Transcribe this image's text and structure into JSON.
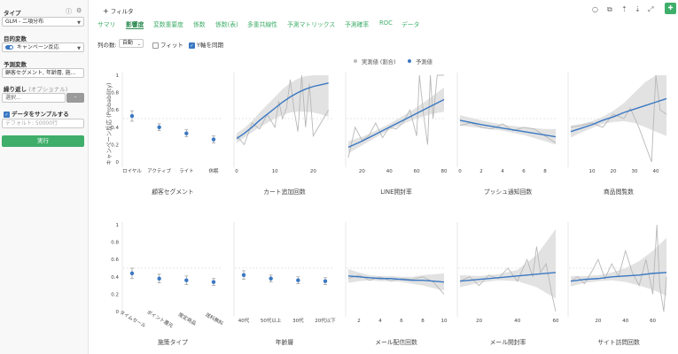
{
  "sidebar": {
    "type_label": "タイプ",
    "type_value": "GLM - 二項分布",
    "target_label": "目的変数",
    "target_value": "キャンペーン反応",
    "predictor_label": "予測変数",
    "predictor_value": "顧客セグメント, 年齢層, 施...",
    "repeat_label": "繰り返し",
    "repeat_optional": "(オプショナル)",
    "repeat_placeholder": "選択...",
    "sample_label": "データをサンプルする",
    "sample_placeholder": "デフォルト: 50000行",
    "run_label": "実行"
  },
  "header": {
    "filter_label": "フィルタ",
    "tabs": [
      "サマリ",
      "影響度",
      "変数重要度",
      "係数",
      "係数(表)",
      "多重共線性",
      "予測マトリックス",
      "予測確率",
      "ROC",
      "データ"
    ],
    "columns_label": "列の数:",
    "columns_value": "自動",
    "fit_label": "フィット",
    "sync_label": "Y軸を同期"
  },
  "legend": {
    "actual": "実測値 (割合)",
    "predicted": "予測値"
  },
  "colors": {
    "accent": "#3fae6a",
    "line": "#3a78c2",
    "band": "#e2e2e2",
    "actual": "#b8b8b8"
  },
  "chart_data": [
    {
      "type": "scatter",
      "title": "顧客セグメント",
      "ylabel": "キャンペーン反応 (Probability)",
      "ylim": [
        0,
        1
      ],
      "yticks": [
        "0",
        "0.2",
        "0.4",
        "0.6",
        "0.8",
        "1"
      ],
      "categories": [
        "ロイヤル",
        "アクティブ",
        "ライト",
        "休眠"
      ],
      "values": [
        0.53,
        0.4,
        0.33,
        0.26
      ],
      "lower": [
        0.47,
        0.36,
        0.29,
        0.22
      ],
      "upper": [
        0.59,
        0.44,
        0.37,
        0.3
      ]
    },
    {
      "type": "line",
      "title": "カート追加回数",
      "xlim": [
        0,
        25
      ],
      "xticks": [
        0,
        10,
        20
      ],
      "ylim": [
        0,
        1
      ],
      "x": [
        0,
        2,
        4,
        6,
        8,
        10,
        12,
        14,
        16,
        18,
        20,
        22,
        24
      ],
      "values": [
        0.27,
        0.33,
        0.4,
        0.48,
        0.55,
        0.62,
        0.69,
        0.75,
        0.8,
        0.84,
        0.87,
        0.89,
        0.91
      ],
      "lower": [
        0.22,
        0.28,
        0.34,
        0.4,
        0.45,
        0.5,
        0.54,
        0.57,
        0.58,
        0.58,
        0.57,
        0.55,
        0.52
      ],
      "upper": [
        0.33,
        0.39,
        0.47,
        0.57,
        0.66,
        0.75,
        0.84,
        0.91,
        0.96,
        0.99,
        1.0,
        1.0,
        1.0
      ],
      "actual_x": [
        0,
        2,
        4,
        6,
        8,
        10,
        11,
        12,
        13,
        14,
        15,
        16,
        17,
        18,
        19,
        20,
        22,
        24
      ],
      "actual": [
        0.3,
        0.2,
        0.45,
        0.38,
        0.55,
        0.4,
        0.7,
        0.5,
        0.62,
        0.95,
        0.6,
        0.35,
        1.0,
        0.4,
        0.9,
        0.3,
        0.45,
        0.6
      ]
    },
    {
      "type": "line",
      "title": "LINE開封率",
      "xlim": [
        10,
        80
      ],
      "xticks": [
        20,
        40,
        60,
        80
      ],
      "ylim": [
        0,
        1
      ],
      "x": [
        10,
        20,
        30,
        40,
        50,
        60,
        70,
        80
      ],
      "values": [
        0.17,
        0.24,
        0.32,
        0.4,
        0.48,
        0.56,
        0.64,
        0.72
      ],
      "lower": [
        0.1,
        0.19,
        0.28,
        0.37,
        0.44,
        0.5,
        0.55,
        0.58
      ],
      "upper": [
        0.24,
        0.29,
        0.36,
        0.44,
        0.53,
        0.63,
        0.74,
        0.86
      ],
      "actual_x": [
        10,
        15,
        20,
        25,
        30,
        35,
        40,
        45,
        50,
        55,
        60,
        62,
        65,
        68,
        70,
        72,
        75,
        80
      ],
      "actual": [
        0.05,
        0.4,
        0.25,
        0.3,
        0.45,
        0.28,
        0.4,
        0.38,
        0.45,
        0.6,
        0.3,
        1.0,
        0.55,
        0.2,
        1.0,
        0.5,
        1.0,
        1.0
      ]
    },
    {
      "type": "line",
      "title": "プッシュ通知回数",
      "xlim": [
        0,
        9
      ],
      "xticks": [
        0,
        2,
        4,
        6,
        8
      ],
      "ylim": [
        0,
        1
      ],
      "x": [
        0,
        2,
        4,
        6,
        8,
        9
      ],
      "values": [
        0.48,
        0.43,
        0.39,
        0.35,
        0.31,
        0.29
      ],
      "lower": [
        0.42,
        0.39,
        0.36,
        0.31,
        0.24,
        0.2
      ],
      "upper": [
        0.54,
        0.48,
        0.43,
        0.4,
        0.38,
        0.38
      ],
      "actual_x": [
        0,
        1,
        2,
        3,
        4,
        5,
        6,
        7,
        8,
        9
      ],
      "actual": [
        0.42,
        0.45,
        0.4,
        0.38,
        0.44,
        0.36,
        0.4,
        0.38,
        0.3,
        0.22
      ]
    },
    {
      "type": "line",
      "title": "商品閲覧数",
      "xlim": [
        0,
        45
      ],
      "xticks": [
        10,
        20,
        30,
        40
      ],
      "ylim": [
        0,
        1
      ],
      "x": [
        0,
        5,
        10,
        15,
        20,
        25,
        30,
        35,
        40,
        45
      ],
      "values": [
        0.35,
        0.39,
        0.43,
        0.48,
        0.52,
        0.57,
        0.61,
        0.65,
        0.69,
        0.73
      ],
      "lower": [
        0.28,
        0.34,
        0.39,
        0.44,
        0.46,
        0.47,
        0.45,
        0.4,
        0.35,
        0.3
      ],
      "upper": [
        0.42,
        0.44,
        0.47,
        0.52,
        0.59,
        0.68,
        0.8,
        0.92,
        1.0,
        1.0
      ],
      "actual_x": [
        0,
        5,
        10,
        15,
        20,
        25,
        28,
        32,
        35,
        38,
        40,
        42,
        45
      ],
      "actual": [
        0.4,
        0.42,
        0.45,
        0.4,
        0.55,
        0.5,
        0.62,
        0.4,
        0.2,
        0.0,
        1.0,
        0.6,
        0.55
      ]
    },
    {
      "type": "scatter",
      "title": "施策タイプ",
      "ylim": [
        0,
        1
      ],
      "yticks": [
        "0",
        "0.2",
        "0.4",
        "0.6",
        "0.8",
        "1"
      ],
      "categories": [
        "タイムセール",
        "ポイント還元",
        "限定商品",
        "送料無料"
      ],
      "values": [
        0.44,
        0.38,
        0.36,
        0.34
      ],
      "lower": [
        0.38,
        0.33,
        0.31,
        0.3
      ],
      "upper": [
        0.5,
        0.43,
        0.41,
        0.38
      ]
    },
    {
      "type": "scatter",
      "title": "年齢層",
      "ylim": [
        0,
        1
      ],
      "categories": [
        "40代",
        "50代以上",
        "30代",
        "20代以下"
      ],
      "values": [
        0.42,
        0.38,
        0.36,
        0.35
      ],
      "lower": [
        0.37,
        0.34,
        0.32,
        0.31
      ],
      "upper": [
        0.47,
        0.42,
        0.4,
        0.39
      ]
    },
    {
      "type": "line",
      "title": "メール配信回数",
      "xlim": [
        1,
        10
      ],
      "xticks": [
        2,
        4,
        6,
        8,
        10
      ],
      "ylim": [
        0,
        1
      ],
      "x": [
        1,
        2,
        3,
        4,
        5,
        6,
        7,
        8,
        9,
        10
      ],
      "values": [
        0.41,
        0.4,
        0.39,
        0.38,
        0.38,
        0.37,
        0.36,
        0.36,
        0.35,
        0.34
      ],
      "lower": [
        0.33,
        0.35,
        0.36,
        0.35,
        0.35,
        0.34,
        0.32,
        0.3,
        0.27,
        0.24
      ],
      "upper": [
        0.49,
        0.45,
        0.42,
        0.41,
        0.41,
        0.4,
        0.4,
        0.42,
        0.43,
        0.44
      ],
      "actual_x": [
        1,
        2,
        3,
        4,
        5,
        6,
        7,
        8,
        9,
        10
      ],
      "actual": [
        0.38,
        0.42,
        0.36,
        0.4,
        0.35,
        0.38,
        0.37,
        0.4,
        0.34,
        0.2
      ]
    },
    {
      "type": "line",
      "title": "メール開封率",
      "xlim": [
        10,
        60
      ],
      "xticks": [
        20,
        40,
        60
      ],
      "ylim": [
        0,
        1
      ],
      "x": [
        10,
        20,
        30,
        40,
        50,
        60
      ],
      "values": [
        0.35,
        0.37,
        0.39,
        0.41,
        0.43,
        0.45
      ],
      "lower": [
        0.28,
        0.33,
        0.36,
        0.35,
        0.28,
        0.15
      ],
      "upper": [
        0.42,
        0.41,
        0.43,
        0.48,
        0.65,
        0.95
      ],
      "actual_x": [
        10,
        15,
        20,
        25,
        30,
        35,
        40,
        45,
        48,
        50,
        52,
        55,
        58,
        60
      ],
      "actual": [
        0.35,
        0.4,
        0.3,
        0.42,
        0.38,
        0.5,
        0.35,
        0.6,
        0.4,
        0.75,
        0.45,
        0.55,
        0.2,
        0.0
      ]
    },
    {
      "type": "line",
      "title": "サイト訪問回数",
      "xlim": [
        0,
        70
      ],
      "xticks": [
        20,
        40,
        60
      ],
      "ylim": [
        0,
        1
      ],
      "x": [
        0,
        10,
        20,
        30,
        40,
        50,
        60,
        70
      ],
      "values": [
        0.35,
        0.37,
        0.38,
        0.4,
        0.41,
        0.42,
        0.44,
        0.45
      ],
      "lower": [
        0.29,
        0.33,
        0.35,
        0.36,
        0.34,
        0.3,
        0.25,
        0.18
      ],
      "upper": [
        0.41,
        0.41,
        0.42,
        0.45,
        0.5,
        0.58,
        0.7,
        0.85
      ],
      "actual_x": [
        0,
        5,
        10,
        15,
        20,
        25,
        30,
        35,
        40,
        45,
        50,
        55,
        60,
        63,
        65,
        68,
        70
      ],
      "actual": [
        0.35,
        0.4,
        0.32,
        0.45,
        0.6,
        0.38,
        0.55,
        0.4,
        0.7,
        0.45,
        0.3,
        0.6,
        0.2,
        1.0,
        0.3,
        0.0,
        0.4
      ]
    }
  ]
}
